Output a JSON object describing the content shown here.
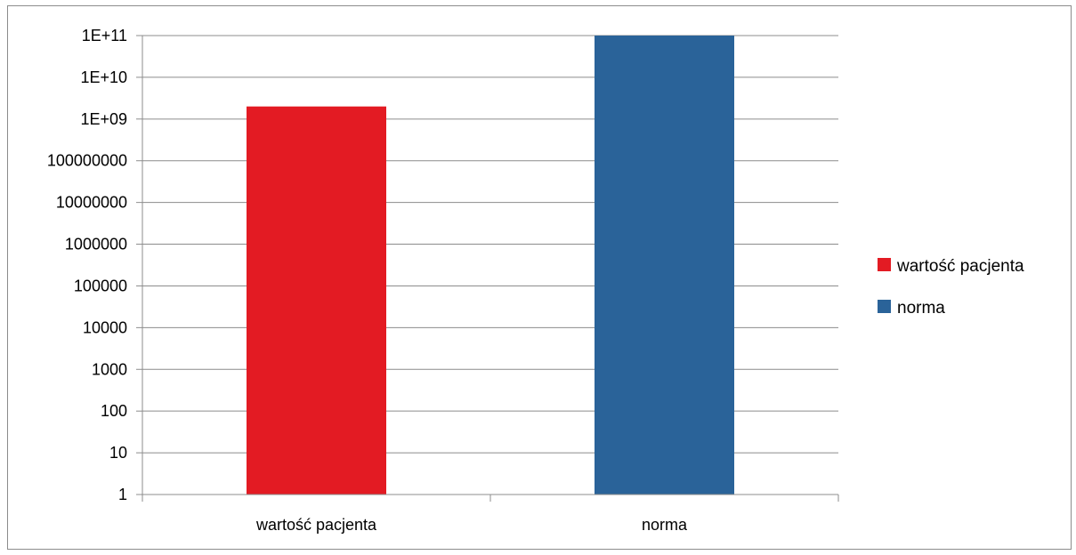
{
  "chart_data": {
    "type": "bar",
    "title": "",
    "xlabel": "",
    "ylabel": "",
    "y_scale": "log",
    "ylim": [
      1,
      100000000000
    ],
    "y_ticks": [
      1,
      10,
      100,
      1000,
      10000,
      100000,
      1000000,
      10000000,
      100000000,
      1000000000,
      10000000000,
      100000000000
    ],
    "y_tick_labels": [
      "1",
      "10",
      "100",
      "1000",
      "10000",
      "100000",
      "1000000",
      "10000000",
      "100000000",
      "1E+09",
      "1E+10",
      "1E+11"
    ],
    "categories": [
      "wartość pacjenta",
      "norma"
    ],
    "values": [
      2000000000,
      100000000000
    ],
    "colors": [
      "#e31b23",
      "#2a6399"
    ],
    "grid": true,
    "legend": {
      "placement": "right",
      "entries": [
        {
          "label": "wartość pacjenta",
          "color": "#e31b23"
        },
        {
          "label": "norma",
          "color": "#2a6399"
        }
      ]
    }
  }
}
